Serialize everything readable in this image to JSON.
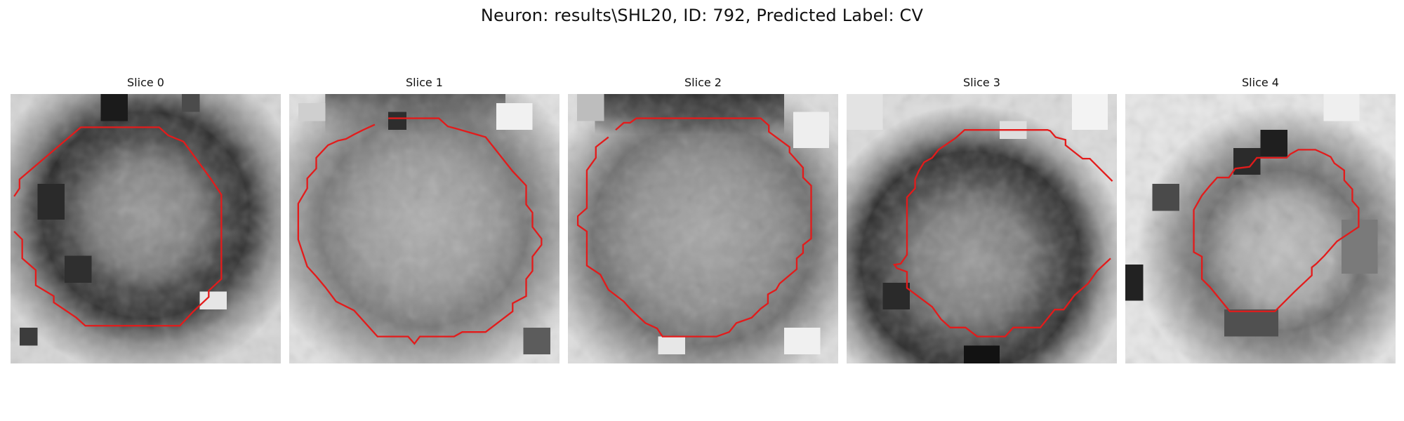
{
  "figure": {
    "title": "Neuron: results\\SHL20, ID: 792, Predicted Label: CV"
  },
  "style": {
    "contour_color": "#e31b1b",
    "background": "#ffffff"
  },
  "panels": [
    {
      "label": "Slice 0"
    },
    {
      "label": "Slice 1"
    },
    {
      "label": "Slice 2"
    },
    {
      "label": "Slice 3"
    },
    {
      "label": "Slice 4"
    }
  ]
}
